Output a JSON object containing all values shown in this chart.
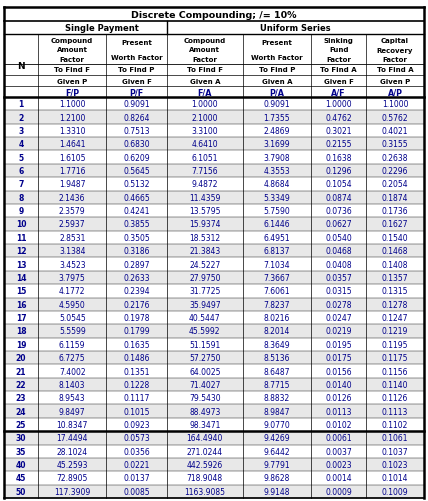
{
  "title": "Discrete Compounding; /= 10%",
  "col1_header": "Single Payment",
  "col2_header": "Uniform Series",
  "subhdr1": [
    "Compound\nAmount\nFactor",
    "Present\nWorth Factor",
    "Compound\nAmount\nFactor",
    "Present\nWorth Factor",
    "Sinking\nFund\nFactor",
    "Capital\nRecovery\nFactor"
  ],
  "subhdr2": [
    "To Find F",
    "To Find P",
    "To Find F",
    "To Find P",
    "To Find A",
    "To Find A"
  ],
  "subhdr3": [
    "Given P",
    "Given F",
    "Given A",
    "Given A",
    "Given F",
    "Given P"
  ],
  "subhdr4": [
    "F/P",
    "P/F",
    "F/A",
    "P/A",
    "A/F",
    "A/P"
  ],
  "rows": [
    [
      1,
      "1.1000",
      "0.9091",
      "1.0000",
      "0.9091",
      "1.0000",
      "1.1000"
    ],
    [
      2,
      "1.2100",
      "0.8264",
      "2.1000",
      "1.7355",
      "0.4762",
      "0.5762"
    ],
    [
      3,
      "1.3310",
      "0.7513",
      "3.3100",
      "2.4869",
      "0.3021",
      "0.4021"
    ],
    [
      4,
      "1.4641",
      "0.6830",
      "4.6410",
      "3.1699",
      "0.2155",
      "0.3155"
    ],
    [
      5,
      "1.6105",
      "0.6209",
      "6.1051",
      "3.7908",
      "0.1638",
      "0.2638"
    ],
    [
      6,
      "1.7716",
      "0.5645",
      "7.7156",
      "4.3553",
      "0.1296",
      "0.2296"
    ],
    [
      7,
      "1.9487",
      "0.5132",
      "9.4872",
      "4.8684",
      "0.1054",
      "0.2054"
    ],
    [
      8,
      "2.1436",
      "0.4665",
      "11.4359",
      "5.3349",
      "0.0874",
      "0.1874"
    ],
    [
      9,
      "2.3579",
      "0.4241",
      "13.5795",
      "5.7590",
      "0.0736",
      "0.1736"
    ],
    [
      10,
      "2.5937",
      "0.3855",
      "15.9374",
      "6.1446",
      "0.0627",
      "0.1627"
    ],
    [
      11,
      "2.8531",
      "0.3505",
      "18.5312",
      "6.4951",
      "0.0540",
      "0.1540"
    ],
    [
      12,
      "3.1384",
      "0.3186",
      "21.3843",
      "6.8137",
      "0.0468",
      "0.1468"
    ],
    [
      13,
      "3.4523",
      "0.2897",
      "24.5227",
      "7.1034",
      "0.0408",
      "0.1408"
    ],
    [
      14,
      "3.7975",
      "0.2633",
      "27.9750",
      "7.3667",
      "0.0357",
      "0.1357"
    ],
    [
      15,
      "4.1772",
      "0.2394",
      "31.7725",
      "7.6061",
      "0.0315",
      "0.1315"
    ],
    [
      16,
      "4.5950",
      "0.2176",
      "35.9497",
      "7.8237",
      "0.0278",
      "0.1278"
    ],
    [
      17,
      "5.0545",
      "0.1978",
      "40.5447",
      "8.0216",
      "0.0247",
      "0.1247"
    ],
    [
      18,
      "5.5599",
      "0.1799",
      "45.5992",
      "8.2014",
      "0.0219",
      "0.1219"
    ],
    [
      19,
      "6.1159",
      "0.1635",
      "51.1591",
      "8.3649",
      "0.0195",
      "0.1195"
    ],
    [
      20,
      "6.7275",
      "0.1486",
      "57.2750",
      "8.5136",
      "0.0175",
      "0.1175"
    ],
    [
      21,
      "7.4002",
      "0.1351",
      "64.0025",
      "8.6487",
      "0.0156",
      "0.1156"
    ],
    [
      22,
      "8.1403",
      "0.1228",
      "71.4027",
      "8.7715",
      "0.0140",
      "0.1140"
    ],
    [
      23,
      "8.9543",
      "0.1117",
      "79.5430",
      "8.8832",
      "0.0126",
      "0.1126"
    ],
    [
      24,
      "9.8497",
      "0.1015",
      "88.4973",
      "8.9847",
      "0.0113",
      "0.1113"
    ],
    [
      25,
      "10.8347",
      "0.0923",
      "98.3471",
      "9.0770",
      "0.0102",
      "0.1102"
    ],
    [
      30,
      "17.4494",
      "0.0573",
      "164.4940",
      "9.4269",
      "0.0061",
      "0.1061"
    ],
    [
      35,
      "28.1024",
      "0.0356",
      "271.0244",
      "9.6442",
      "0.0037",
      "0.1037"
    ],
    [
      40,
      "45.2593",
      "0.0221",
      "442.5926",
      "9.7791",
      "0.0023",
      "0.1023"
    ],
    [
      45,
      "72.8905",
      "0.0137",
      "718.9048",
      "9.8628",
      "0.0014",
      "0.1014"
    ],
    [
      50,
      "117.3909",
      "0.0085",
      "1163.9085",
      "9.9148",
      "0.0009",
      "0.1009"
    ]
  ],
  "thick_row_after": 25,
  "text_color": "#00008B",
  "header_text_color": "#000000",
  "bg_white": "#ffffff",
  "bg_gray": "#e8e8e8"
}
